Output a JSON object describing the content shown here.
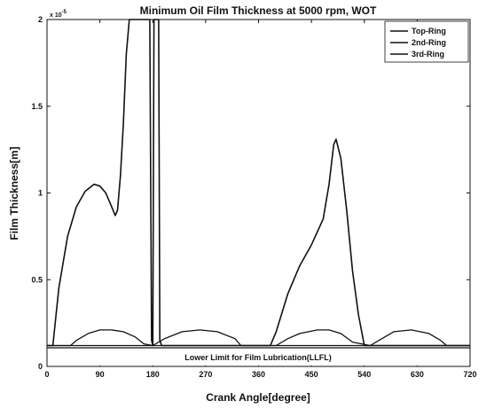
{
  "chart_data": {
    "type": "line",
    "title": "Minimum Oil Film Thickness at 5000 rpm, WOT",
    "xlabel": "Crank Angle[degree]",
    "ylabel": "Film Thickness[m]",
    "y_multiplier": "x 10",
    "y_multiplier_exp": "-5",
    "xlim": [
      0,
      720
    ],
    "ylim": [
      0,
      2
    ],
    "x_ticks": [
      0,
      90,
      180,
      270,
      360,
      450,
      540,
      630,
      720
    ],
    "y_ticks": [
      0,
      0.5,
      1,
      1.5,
      2
    ],
    "y_tick_labels": [
      "0",
      "0.5",
      "1",
      "1.5",
      "2"
    ],
    "grid": false,
    "legend_position": "top-right",
    "annotation": "Lower Limit for Film Lubrication(LLFL)",
    "llfl_value": 0.12,
    "series": [
      {
        "name": "Top-Ring",
        "color": "#111111",
        "x": [
          0,
          10,
          20,
          35,
          50,
          65,
          80,
          90,
          100,
          110,
          116,
          120,
          125,
          130,
          135,
          140,
          145,
          150,
          175,
          178,
          180,
          182,
          185,
          190,
          192,
          195,
          380,
          390,
          410,
          430,
          450,
          470,
          480,
          488,
          492,
          500,
          510,
          520,
          530,
          540,
          720
        ],
        "y": [
          0.12,
          0.12,
          0.45,
          0.75,
          0.92,
          1.01,
          1.05,
          1.04,
          1.0,
          0.92,
          0.87,
          0.9,
          1.1,
          1.4,
          1.8,
          2.0,
          2.0,
          2.0,
          2.0,
          0.15,
          0.12,
          2.0,
          2.0,
          2.0,
          0.15,
          0.12,
          0.12,
          0.2,
          0.42,
          0.58,
          0.7,
          0.85,
          1.05,
          1.28,
          1.31,
          1.2,
          0.9,
          0.55,
          0.3,
          0.12,
          0.12
        ]
      },
      {
        "name": "2nd-Ring",
        "color": "#111111",
        "x": [
          0,
          40,
          50,
          70,
          90,
          110,
          130,
          150,
          165,
          180,
          200,
          230,
          260,
          290,
          320,
          330,
          390,
          410,
          430,
          460,
          480,
          500,
          520,
          550,
          570,
          590,
          620,
          650,
          670,
          680,
          720
        ],
        "y": [
          0.12,
          0.12,
          0.15,
          0.19,
          0.21,
          0.21,
          0.2,
          0.17,
          0.13,
          0.12,
          0.16,
          0.2,
          0.21,
          0.2,
          0.16,
          0.12,
          0.12,
          0.16,
          0.19,
          0.21,
          0.21,
          0.19,
          0.14,
          0.12,
          0.16,
          0.2,
          0.21,
          0.19,
          0.15,
          0.12,
          0.12
        ]
      },
      {
        "name": "3rd-Ring",
        "color": "#111111",
        "x": [
          0,
          720
        ],
        "y": [
          0.12,
          0.12
        ]
      }
    ]
  }
}
